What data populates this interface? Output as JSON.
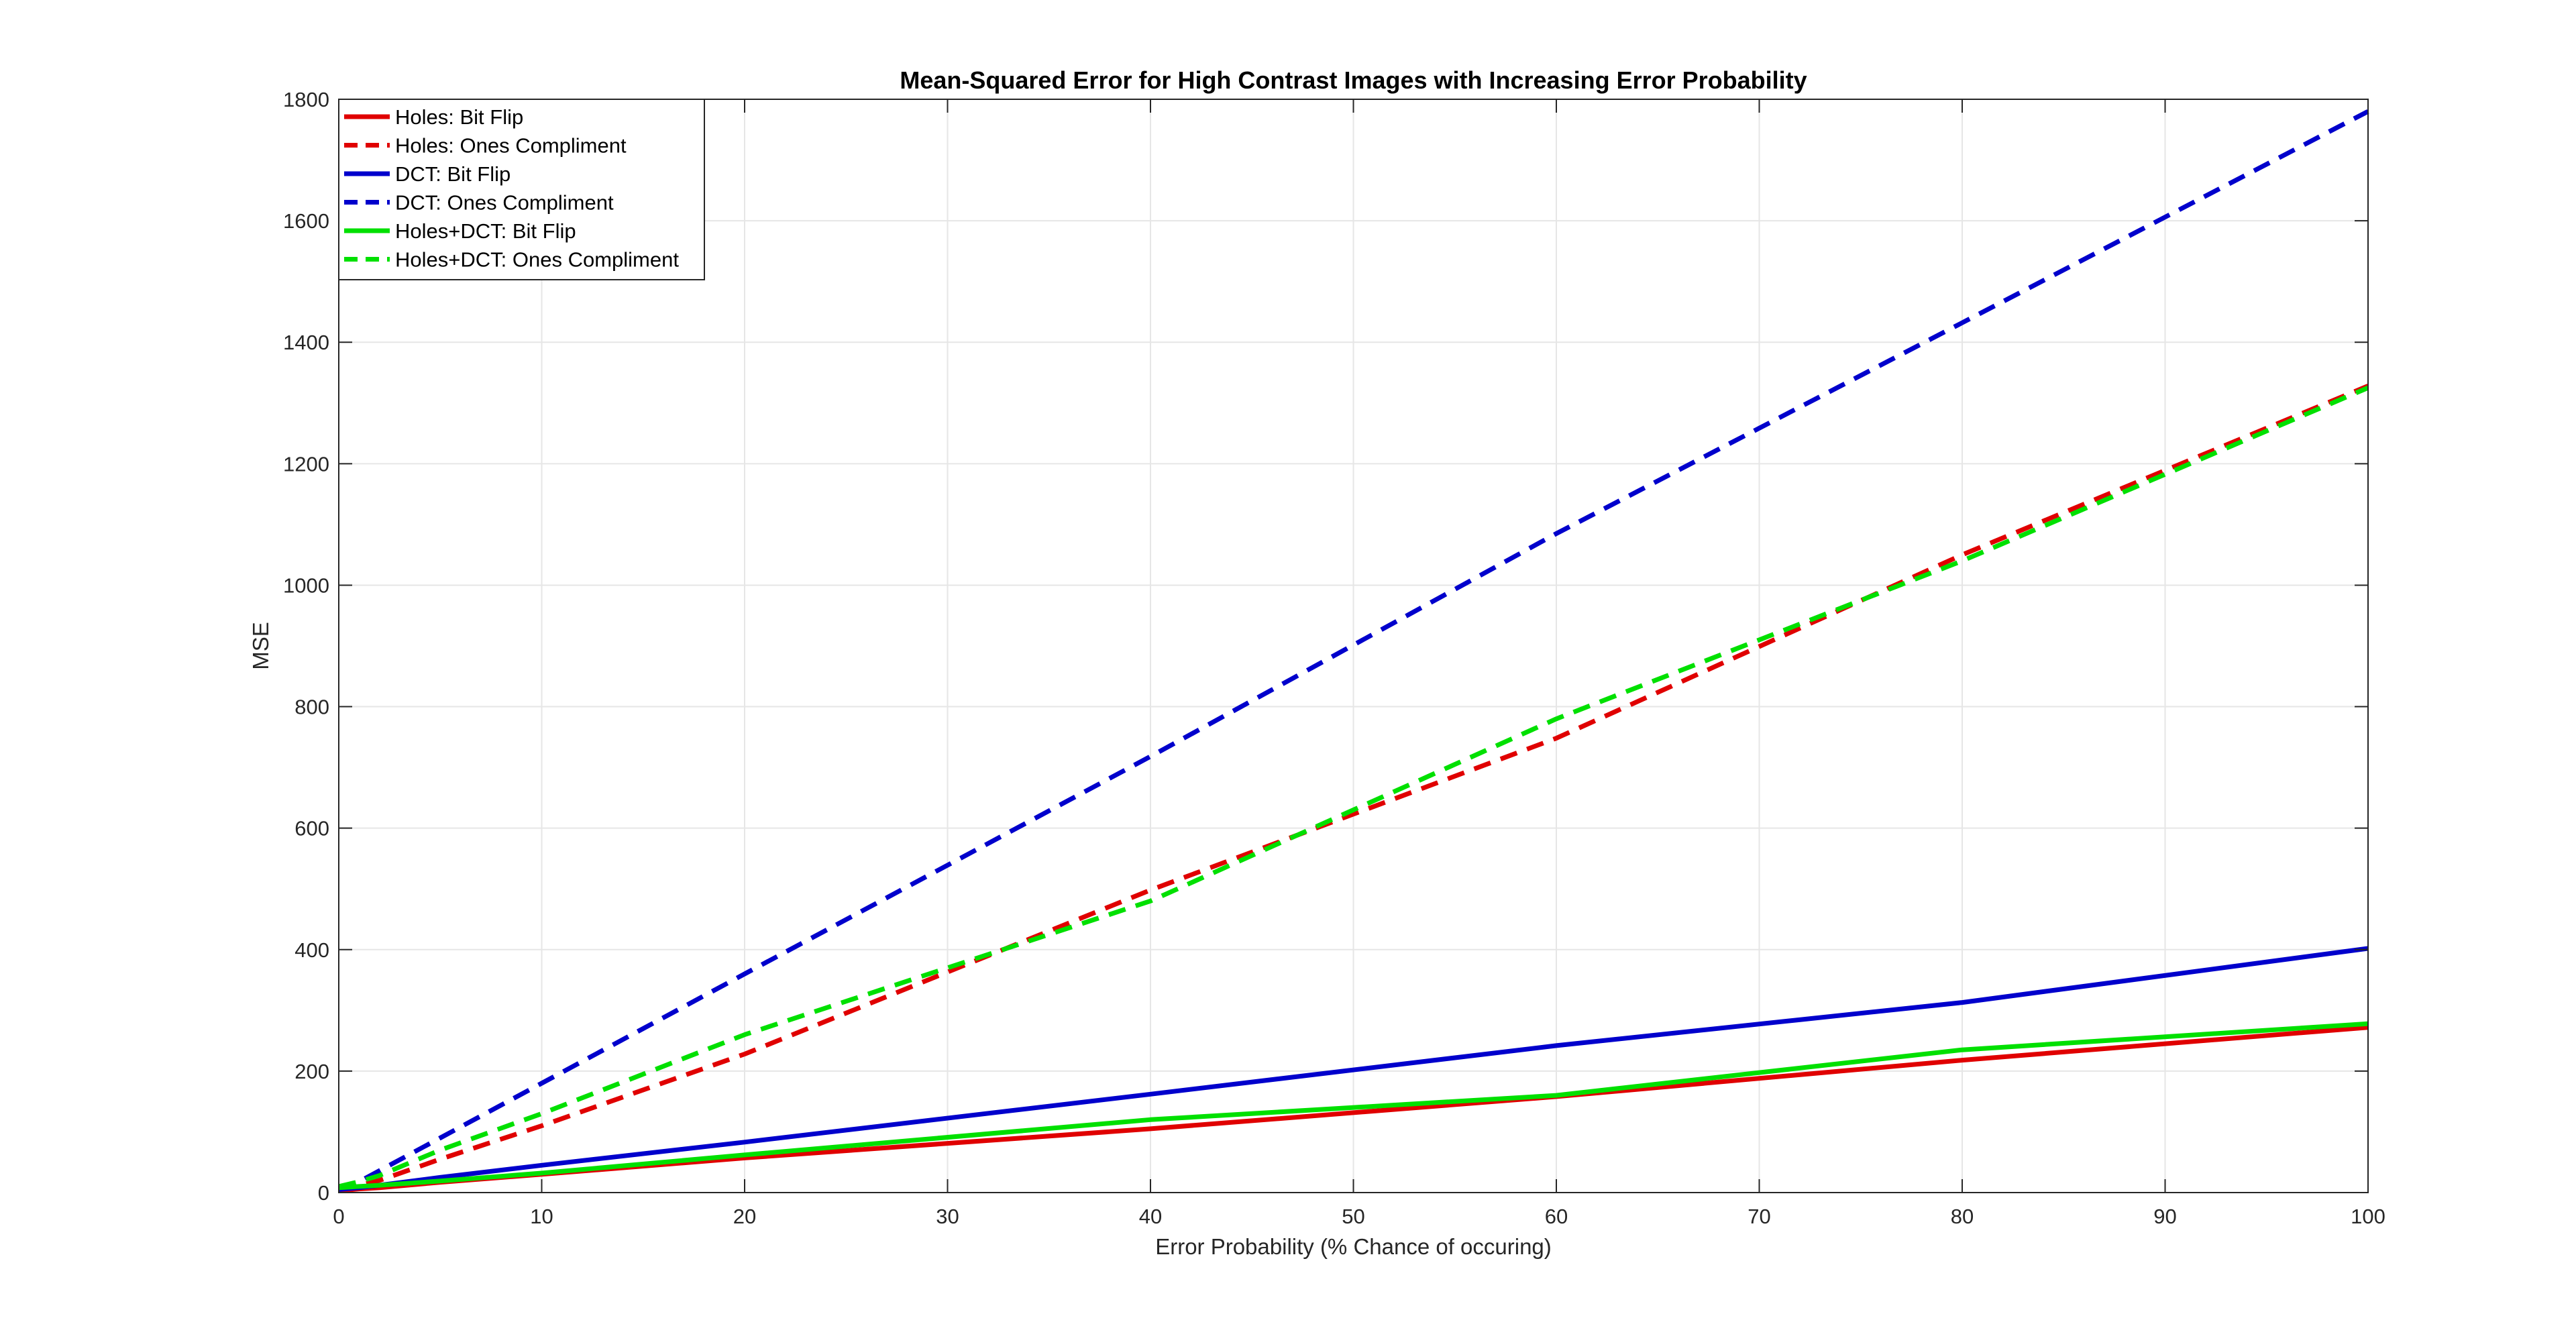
{
  "chart_data": {
    "type": "line",
    "title": "Mean-Squared Error for High Contrast Images with Increasing Error Probability",
    "xlabel": "Error Probability (% Chance of occuring)",
    "ylabel": "MSE",
    "xlim": [
      0,
      100
    ],
    "ylim": [
      0,
      1800
    ],
    "xticks": [
      0,
      10,
      20,
      30,
      40,
      50,
      60,
      70,
      80,
      90,
      100
    ],
    "yticks": [
      0,
      200,
      400,
      600,
      800,
      1000,
      1200,
      1400,
      1600,
      1800
    ],
    "grid": true,
    "legend_position": "top-left",
    "series": [
      {
        "name": "Holes: Bit Flip",
        "color": "#e00000",
        "style": "solid",
        "x": [
          0,
          1,
          2,
          5,
          10,
          20,
          40,
          60,
          80,
          100
        ],
        "y": [
          3,
          6,
          8,
          17,
          30,
          57,
          105,
          158,
          218,
          272
        ]
      },
      {
        "name": "Holes: Ones Compliment",
        "color": "#e00000",
        "style": "dashed",
        "x": [
          0,
          1,
          2,
          5,
          10,
          20,
          40,
          60,
          80,
          100
        ],
        "y": [
          5,
          12,
          20,
          55,
          110,
          228,
          498,
          748,
          1050,
          1328
        ]
      },
      {
        "name": "DCT: Bit Flip",
        "color": "#0000cc",
        "style": "solid",
        "x": [
          0,
          1,
          2,
          5,
          10,
          20,
          40,
          60,
          80,
          100
        ],
        "y": [
          5,
          8,
          12,
          25,
          45,
          83,
          162,
          242,
          313,
          402
        ]
      },
      {
        "name": "DCT: Ones Compliment",
        "color": "#0000cc",
        "style": "dashed",
        "x": [
          0,
          1,
          2,
          5,
          10,
          20,
          40,
          60,
          80,
          100
        ],
        "y": [
          6,
          18,
          36,
          90,
          180,
          360,
          718,
          1085,
          1432,
          1780
        ]
      },
      {
        "name": "Holes+DCT: Bit Flip",
        "color": "#00e000",
        "style": "solid",
        "x": [
          0,
          1,
          2,
          5,
          10,
          20,
          40,
          60,
          80,
          100
        ],
        "y": [
          8,
          10,
          12,
          19,
          32,
          62,
          120,
          160,
          235,
          278
        ]
      },
      {
        "name": "Holes+DCT: Ones Compliment",
        "color": "#00e000",
        "style": "dashed",
        "x": [
          0,
          1,
          2,
          5,
          10,
          20,
          40,
          60,
          80,
          100
        ],
        "y": [
          10,
          18,
          28,
          70,
          130,
          260,
          480,
          780,
          1040,
          1325
        ]
      }
    ]
  }
}
